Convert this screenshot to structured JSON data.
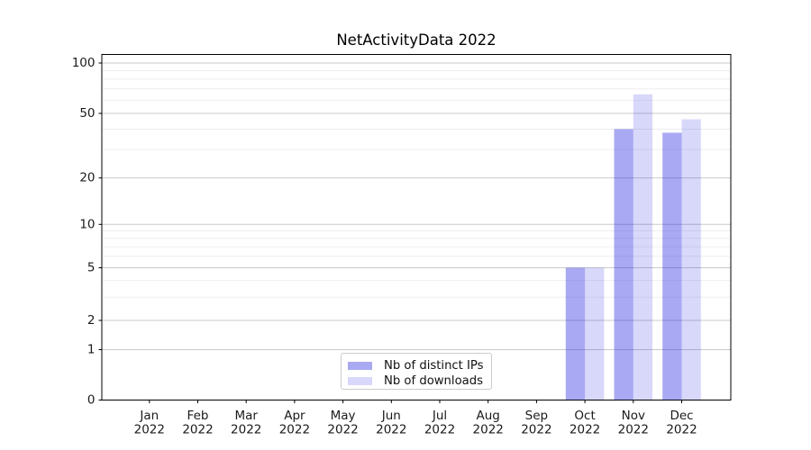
{
  "chart_data": {
    "type": "bar",
    "title": "NetActivityData 2022",
    "categories": [
      "Jan",
      "Feb",
      "Mar",
      "Apr",
      "May",
      "Jun",
      "Jul",
      "Aug",
      "Sep",
      "Oct",
      "Nov",
      "Dec"
    ],
    "category_year": "2022",
    "series": [
      {
        "name": "Nb of distinct IPs",
        "color": "#2828e1",
        "alpha": 0.4,
        "values": [
          0,
          0,
          0,
          0,
          0,
          0,
          0,
          0,
          0,
          5,
          40,
          38
        ]
      },
      {
        "name": "Nb of downloads",
        "color": "#2828e1",
        "alpha": 0.18,
        "values": [
          0,
          0,
          0,
          0,
          0,
          0,
          0,
          0,
          0,
          5,
          65,
          46
        ]
      }
    ],
    "yscale": "symlog",
    "y_ticks": [
      0,
      1,
      2,
      5,
      10,
      20,
      50,
      100
    ],
    "y_minor_ticks": [
      3,
      4,
      6,
      7,
      8,
      9,
      30,
      40,
      60,
      70,
      80,
      90
    ],
    "ylim": [
      0,
      112
    ],
    "xlabel": "",
    "ylabel": "",
    "grid": "horizontal major+minor",
    "legend_position": "lower center"
  },
  "style_colors": {
    "major_grid": "#c9c9c9",
    "minor_grid": "#e9e9e9",
    "spine": "#000000",
    "tick_label": "#1a1a1a"
  }
}
